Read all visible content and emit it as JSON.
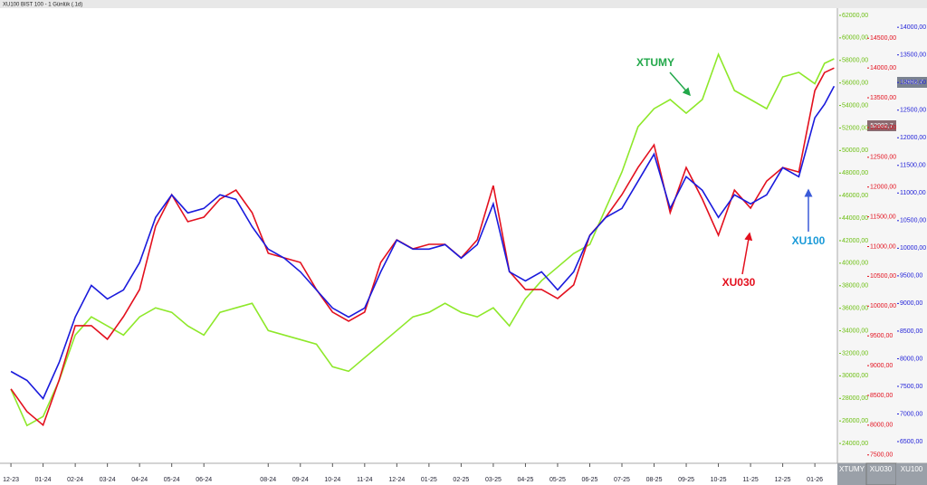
{
  "chart_data": {
    "type": "line",
    "title": "XU100 BIST 100 - 1 Günlük (.1d)",
    "x": [
      0,
      0.5,
      1,
      1.5,
      2,
      2.5,
      3,
      3.5,
      4,
      4.5,
      5,
      5.5,
      6,
      6.5,
      7,
      7.5,
      8,
      8.5,
      9,
      9.5,
      10,
      10.5,
      11,
      11.5,
      12,
      12.5,
      13,
      13.5,
      14,
      14.5,
      15,
      15.5,
      16,
      16.5,
      17,
      17.5,
      18,
      18.5,
      19,
      19.5,
      20,
      20.5,
      21,
      21.5,
      22,
      22.5,
      23,
      23.5,
      24,
      24.5,
      25,
      25.3,
      25.6
    ],
    "xlim": [
      -0.34,
      25.7
    ],
    "xticks": [
      {
        "value": 0,
        "label": "12-23"
      },
      {
        "value": 1,
        "label": "01-24"
      },
      {
        "value": 2,
        "label": "02-24"
      },
      {
        "value": 3,
        "label": "03-24"
      },
      {
        "value": 4,
        "label": "04-24"
      },
      {
        "value": 5,
        "label": "05-24"
      },
      {
        "value": 6,
        "label": "06-24"
      },
      {
        "value": 8,
        "label": "08-24"
      },
      {
        "value": 9,
        "label": "09-24"
      },
      {
        "value": 10,
        "label": "10-24"
      },
      {
        "value": 11,
        "label": "11-24"
      },
      {
        "value": 12,
        "label": "12-24"
      },
      {
        "value": 13,
        "label": "01-25"
      },
      {
        "value": 14,
        "label": "02-25"
      },
      {
        "value": 15,
        "label": "03-25"
      },
      {
        "value": 16,
        "label": "04-25"
      },
      {
        "value": 17,
        "label": "05-25"
      },
      {
        "value": 18,
        "label": "06-25"
      },
      {
        "value": 19,
        "label": "07-25"
      },
      {
        "value": 20,
        "label": "08-25"
      },
      {
        "value": 21,
        "label": "09-25"
      },
      {
        "value": 22,
        "label": "10-25"
      },
      {
        "value": 23,
        "label": "11-25"
      },
      {
        "value": 24,
        "label": "12-25"
      },
      {
        "value": 25,
        "label": "01-26"
      }
    ],
    "series": [
      {
        "name": "XTUMY",
        "color": "#8ee82a",
        "label_color": "#6cbf12",
        "ylim": [
          22400,
          62560
        ],
        "yticks": [
          {
            "value": 24000,
            "label": "24000,00"
          },
          {
            "value": 26000,
            "label": "26000,00"
          },
          {
            "value": 28000,
            "label": "28000,00"
          },
          {
            "value": 30000,
            "label": "30000,00"
          },
          {
            "value": 32000,
            "label": "32000,00"
          },
          {
            "value": 34000,
            "label": "34000,00"
          },
          {
            "value": 36000,
            "label": "36000,00"
          },
          {
            "value": 38000,
            "label": "38000,00"
          },
          {
            "value": 40000,
            "label": "40000,00"
          },
          {
            "value": 42000,
            "label": "42000,00"
          },
          {
            "value": 44000,
            "label": "44000,00"
          },
          {
            "value": 46000,
            "label": "46000,00"
          },
          {
            "value": 48000,
            "label": "48000,00"
          },
          {
            "value": 50000,
            "label": "50000,00"
          },
          {
            "value": 52000,
            "label": "52000,00"
          },
          {
            "value": 54000,
            "label": "54000,00"
          },
          {
            "value": 56000,
            "label": "56000,00"
          },
          {
            "value": 58000,
            "label": "58000,00"
          },
          {
            "value": 60000,
            "label": "60000,00"
          },
          {
            "value": 62000,
            "label": "62000,00"
          }
        ],
        "values": [
          28800,
          25585,
          26389,
          29604,
          33624,
          35232,
          34428,
          33624,
          35232,
          36036,
          35634,
          34428,
          33624,
          35634,
          36036,
          36438,
          34026,
          33624,
          33222,
          32820,
          30810,
          30408,
          31614,
          32820,
          34026,
          35232,
          35634,
          36438,
          35634,
          35232,
          36036,
          34428,
          36840,
          38448,
          39653,
          40860,
          41663,
          44878,
          48093,
          52112,
          53720,
          54524,
          53318,
          54524,
          58543,
          55328,
          54524,
          53720,
          56534,
          56936,
          55932,
          57740,
          58140
        ]
      },
      {
        "name": "XU030",
        "color": "#e3101e",
        "label_color": "#e3101e",
        "ylim": [
          7390,
          14990
        ],
        "yticks": [
          {
            "value": 7500,
            "label": "7500,00"
          },
          {
            "value": 8000,
            "label": "8000,00"
          },
          {
            "value": 8500,
            "label": "8500,00"
          },
          {
            "value": 9000,
            "label": "9000,00"
          },
          {
            "value": 9500,
            "label": "9500,00"
          },
          {
            "value": 10000,
            "label": "10000,00"
          },
          {
            "value": 10500,
            "label": "10500,00"
          },
          {
            "value": 11000,
            "label": "11000,00"
          },
          {
            "value": 11500,
            "label": "11500,00"
          },
          {
            "value": 12000,
            "label": "12000,00"
          },
          {
            "value": 12500,
            "label": "12500,00"
          },
          {
            "value": 13000,
            "label": "13000,00"
          },
          {
            "value": 13500,
            "label": "13500,00"
          },
          {
            "value": 14000,
            "label": "14000,00"
          },
          {
            "value": 14500,
            "label": "14500,00"
          }
        ],
        "values": [
          8609,
          8229,
          8001,
          8761,
          9672,
          9672,
          9444,
          9823,
          10279,
          11342,
          11873,
          11418,
          11494,
          11798,
          11949,
          11570,
          10887,
          10810,
          10734,
          10279,
          9899,
          9748,
          9899,
          10734,
          11114,
          10962,
          11038,
          11038,
          10810,
          11114,
          12025,
          10582,
          10279,
          10279,
          10127,
          10355,
          11190,
          11494,
          11873,
          12329,
          12708,
          11570,
          12329,
          11798,
          11190,
          11949,
          11646,
          12101,
          12329,
          12253,
          13619,
          13923,
          13999
        ]
      },
      {
        "name": "XU100",
        "color": "#1a1adc",
        "label_color": "#2222d8",
        "ylim": [
          6140,
          14330
        ],
        "yticks": [
          {
            "value": 6500,
            "label": "6500,00"
          },
          {
            "value": 7000,
            "label": "7000,00"
          },
          {
            "value": 7500,
            "label": "7500,00"
          },
          {
            "value": 8000,
            "label": "8000,00"
          },
          {
            "value": 8500,
            "label": "8500,00"
          },
          {
            "value": 9000,
            "label": "9000,00"
          },
          {
            "value": 9500,
            "label": "9500,00"
          },
          {
            "value": 10000,
            "label": "10000,00"
          },
          {
            "value": 10500,
            "label": "10500,00"
          },
          {
            "value": 11000,
            "label": "11000,00"
          },
          {
            "value": 11500,
            "label": "11500,00"
          },
          {
            "value": 12000,
            "label": "12000,00"
          },
          {
            "value": 12500,
            "label": "12500,00"
          },
          {
            "value": 13000,
            "label": "13000,00"
          },
          {
            "value": 13500,
            "label": "13500,00"
          },
          {
            "value": 14000,
            "label": "14000,00"
          }
        ],
        "values": [
          7770,
          7607,
          7279,
          7934,
          8754,
          9328,
          9082,
          9246,
          9738,
          10557,
          10967,
          10639,
          10721,
          10967,
          10885,
          10390,
          9984,
          9820,
          9574,
          9246,
          8918,
          8754,
          8918,
          9574,
          10148,
          9984,
          9984,
          10066,
          9820,
          10066,
          10803,
          9574,
          9410,
          9574,
          9246,
          9574,
          10230,
          10557,
          10721,
          11213,
          11705,
          10721,
          11295,
          11049,
          10557,
          10967,
          10803,
          10967,
          11459,
          11295,
          12361,
          12607,
          12934
        ]
      }
    ],
    "annotations": [
      {
        "text": "XTUMY",
        "color": "#22a84a"
      },
      {
        "text": "XU030",
        "color": "#e3101e"
      },
      {
        "text": "XU100",
        "color": "#1a9ad8"
      }
    ],
    "price_boxes": [
      "12992,7",
      "52982,7"
    ]
  }
}
